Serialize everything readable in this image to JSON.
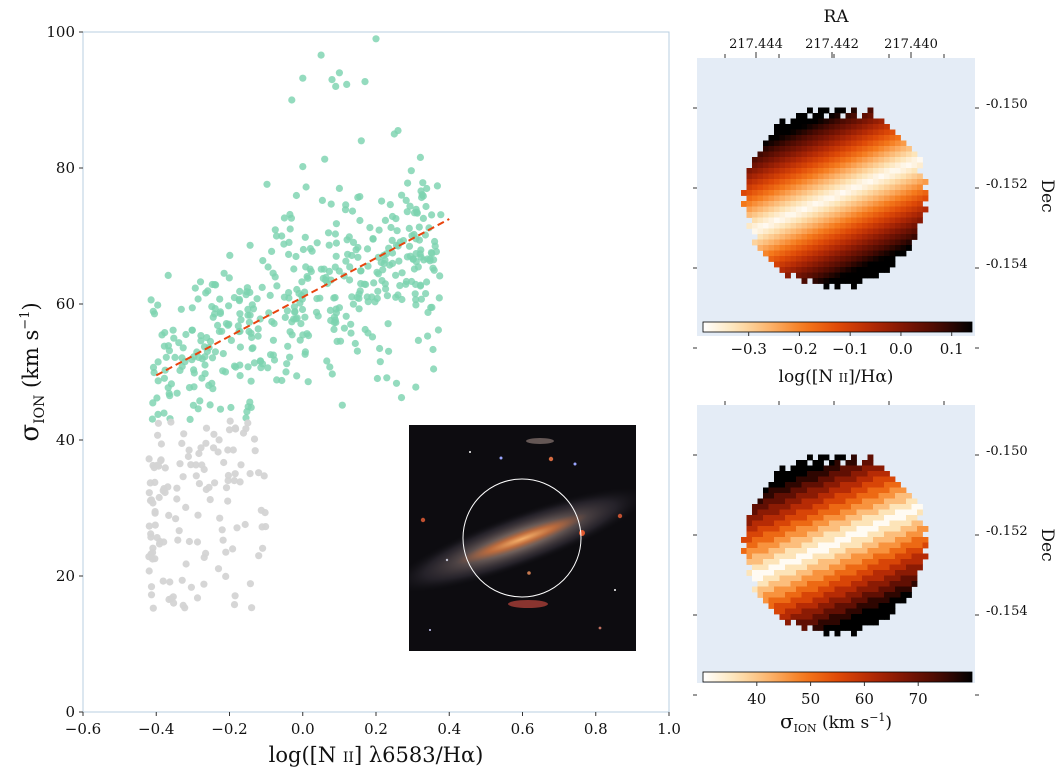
{
  "chart_data": [
    {
      "type": "scatter",
      "xlabel_main": "log([N II] λ6583/Hα)",
      "xlabel": "log([N ",
      "xlabel_sc": "II",
      "xlabel_rest": "] λ6583/Hα)",
      "ylabel_sym": "σ",
      "ylabel_sub": "ION",
      "ylabel_unit": " (km s",
      "ylabel_exp": "−1",
      "ylabel_close": ")",
      "xlim": [
        -0.6,
        1.0
      ],
      "ylim": [
        0,
        100
      ],
      "xticks": [
        "−0.6",
        "−0.4",
        "−0.2",
        "0.0",
        "0.2",
        "0.4",
        "0.6",
        "0.8",
        "1.0"
      ],
      "yticks": [
        "0",
        "20",
        "40",
        "60",
        "80",
        "100"
      ],
      "series": [
        {
          "color": "#7dd3b0",
          "values_note": "points with σ ≥ 43",
          "n": 440
        },
        {
          "color": "#d4d4d4",
          "values_note": "points with σ < 43",
          "n": 130
        }
      ],
      "fit_line": {
        "x": [
          -0.4,
          0.4
        ],
        "y": [
          49.5,
          72.5
        ],
        "color": "#e8440e",
        "style": "dashed"
      }
    },
    {
      "type": "heatmap",
      "top_axis_label": "RA",
      "top_ticks": [
        "217.444",
        "217.442",
        "217.440"
      ],
      "right_axis_label": "Dec",
      "right_ticks": [
        "-0.150",
        "-0.152",
        "-0.154"
      ],
      "colorbar_ticks": [
        "−0.3",
        "−0.2",
        "−0.1",
        "0.0",
        "0.1"
      ],
      "colorbar_range": [
        -0.39,
        0.14
      ],
      "colorbar_label": "log([N ",
      "colorbar_label_sc": "II",
      "colorbar_label_rest": "]/Hα)"
    },
    {
      "type": "heatmap",
      "right_axis_label": "Dec",
      "right_ticks": [
        "-0.150",
        "-0.152",
        "-0.154"
      ],
      "colorbar_ticks": [
        "40",
        "50",
        "60",
        "70"
      ],
      "colorbar_range": [
        30,
        80
      ],
      "colorbar_label_sym": "σ",
      "colorbar_label_sub": "ION",
      "colorbar_label_unit": " (km s",
      "colorbar_label_exp": "−1",
      "colorbar_label_close": ")"
    }
  ],
  "colors": {
    "map_background": "#e4ecf6",
    "axes_frame": "#b9cfe0",
    "cmap": [
      "#ffffff",
      "#fde3b5",
      "#fcb26a",
      "#f57a1c",
      "#df4a07",
      "#b42a05",
      "#7e1604",
      "#480a02",
      "#000000"
    ]
  }
}
